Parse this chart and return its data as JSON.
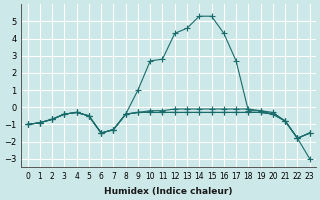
{
  "xlabel": "Humidex (Indice chaleur)",
  "ylabel": "",
  "bg_color": "#cde8e8",
  "grid_color": "#ffffff",
  "line_color": "#1a6b6b",
  "xlim": [
    -0.5,
    23.5
  ],
  "ylim": [
    -3.5,
    6.0
  ],
  "yticks": [
    -3,
    -2,
    -1,
    0,
    1,
    2,
    3,
    4,
    5
  ],
  "xtick_labels": [
    "0",
    "1",
    "2",
    "3",
    "4",
    "5",
    "6",
    "7",
    "8",
    "9",
    "10",
    "11",
    "12",
    "13",
    "14",
    "15",
    "16",
    "17",
    "18",
    "19",
    "20",
    "21",
    "22",
    "23"
  ],
  "series": [
    [
      -1.0,
      -0.9,
      -0.7,
      -0.4,
      -0.3,
      -0.5,
      -1.5,
      -1.3,
      -0.4,
      1.0,
      2.7,
      2.8,
      4.3,
      4.6,
      5.3,
      5.3,
      4.3,
      2.7,
      -0.2,
      -0.2,
      -0.3,
      -0.8,
      -1.8,
      -3.0
    ],
    [
      -1.0,
      -0.9,
      -0.7,
      -0.4,
      -0.3,
      -0.5,
      -1.5,
      -1.3,
      -0.4,
      -0.3,
      -0.3,
      -0.3,
      -0.3,
      -0.3,
      -0.3,
      -0.3,
      -0.3,
      -0.3,
      -0.3,
      -0.3,
      -0.4,
      -0.8,
      -1.8,
      -1.5
    ],
    [
      -1.0,
      -0.9,
      -0.7,
      -0.4,
      -0.3,
      -0.5,
      -1.5,
      -1.3,
      -0.4,
      -0.3,
      -0.3,
      -0.3,
      -0.3,
      -0.3,
      -0.3,
      -0.3,
      -0.3,
      -0.3,
      -0.3,
      -0.3,
      -0.4,
      -0.8,
      -1.8,
      -1.5
    ],
    [
      -1.0,
      -0.9,
      -0.7,
      -0.4,
      -0.3,
      -0.5,
      -1.5,
      -1.3,
      -0.4,
      -0.3,
      -0.2,
      -0.2,
      -0.1,
      -0.1,
      -0.1,
      -0.1,
      -0.1,
      -0.1,
      -0.1,
      -0.2,
      -0.4,
      -0.8,
      -1.8,
      -1.5
    ]
  ]
}
